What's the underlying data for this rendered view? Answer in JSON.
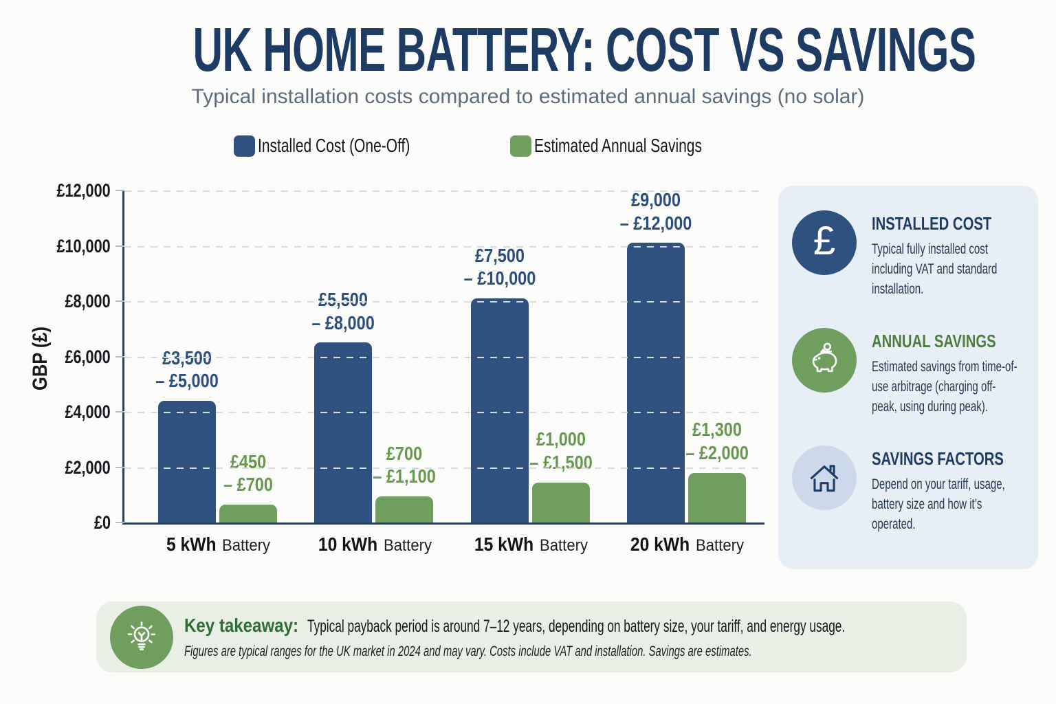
{
  "title": "UK HOME BATTERY: COST VS SAVINGS",
  "subtitle": "Typical installation costs compared to estimated annual savings (no solar)",
  "theme": {
    "navy": "#2e5180",
    "green": "#6f9e5e",
    "light_blue_circle": "#cdd9eb",
    "sidebar_bg": "#e8eef6",
    "footer_bg": "#e9efe5",
    "title_navy": "#1d3b63",
    "green_heading": "#4e7e3e",
    "takeaway_green": "#306c36"
  },
  "chart_data": {
    "type": "bar",
    "title": "UK Home Battery: Cost vs Savings",
    "xlabel": "",
    "ylabel": "GBP (£)",
    "ylim": [
      0,
      12000
    ],
    "grid": "horizontal-dashed",
    "legend_position": "top",
    "yticks": [
      {
        "value": 0,
        "label": "£0"
      },
      {
        "value": 2000,
        "label": "£2,000"
      },
      {
        "value": 4000,
        "label": "£4,000"
      },
      {
        "value": 6000,
        "label": "£6,000"
      },
      {
        "value": 8000,
        "label": "£8,000"
      },
      {
        "value": 10000,
        "label": "£10,000"
      },
      {
        "value": 12000,
        "label": "£12,000"
      }
    ],
    "categories": [
      "5 kWh",
      "10 kWh",
      "15 kWh",
      "20 kWh"
    ],
    "category_subline": "Battery",
    "series": [
      {
        "name": "Installed Cost (One-Off)",
        "color": "#2e5180",
        "label_color": "#2b4e7d",
        "bar_heights": [
          4400,
          6500,
          8100,
          10100
        ],
        "range_low": [
          3500,
          5500,
          7500,
          9000
        ],
        "range_high": [
          5000,
          8000,
          10000,
          12000
        ],
        "range_labels": [
          [
            "£3,500",
            "– £5,000"
          ],
          [
            "£5,500",
            "– £8,000"
          ],
          [
            "£7,500",
            "– £10,000"
          ],
          [
            "£9,000",
            "– £12,000"
          ]
        ]
      },
      {
        "name": "Estimated Annual Savings",
        "color": "#6f9e5e",
        "label_color": "#67984e",
        "bar_heights": [
          650,
          950,
          1450,
          1800
        ],
        "range_low": [
          450,
          700,
          1000,
          1300
        ],
        "range_high": [
          700,
          1100,
          1500,
          2000
        ],
        "range_labels": [
          [
            "£450",
            "– £700"
          ],
          [
            "£700",
            "– £1,100"
          ],
          [
            "£1,000",
            "– £1,500"
          ],
          [
            "£1,300",
            "– £2,000"
          ]
        ]
      }
    ]
  },
  "icons": {
    "pound_glyph": "£"
  },
  "sidebar": {
    "items": [
      {
        "icon": "pound-icon",
        "heading": "INSTALLED COST",
        "body": "Typical fully installed cost including VAT and standard installation."
      },
      {
        "icon": "piggy-bank-icon",
        "heading": "ANNUAL SAVINGS",
        "body": "Estimated savings from time-of-use arbitrage (charging off-peak, using during peak)."
      },
      {
        "icon": "house-icon",
        "heading": "SAVINGS FACTORS",
        "body": "Depend on your tariff, usage, battery size and how it’s operated."
      }
    ]
  },
  "footer": {
    "label": "Key takeaway:",
    "text": "Typical payback period is around 7–12 years, depending on battery size, your tariff, and energy usage.",
    "note": "Figures are typical ranges for the UK market in 2024 and may vary. Costs include VAT and installation. Savings are estimates."
  }
}
